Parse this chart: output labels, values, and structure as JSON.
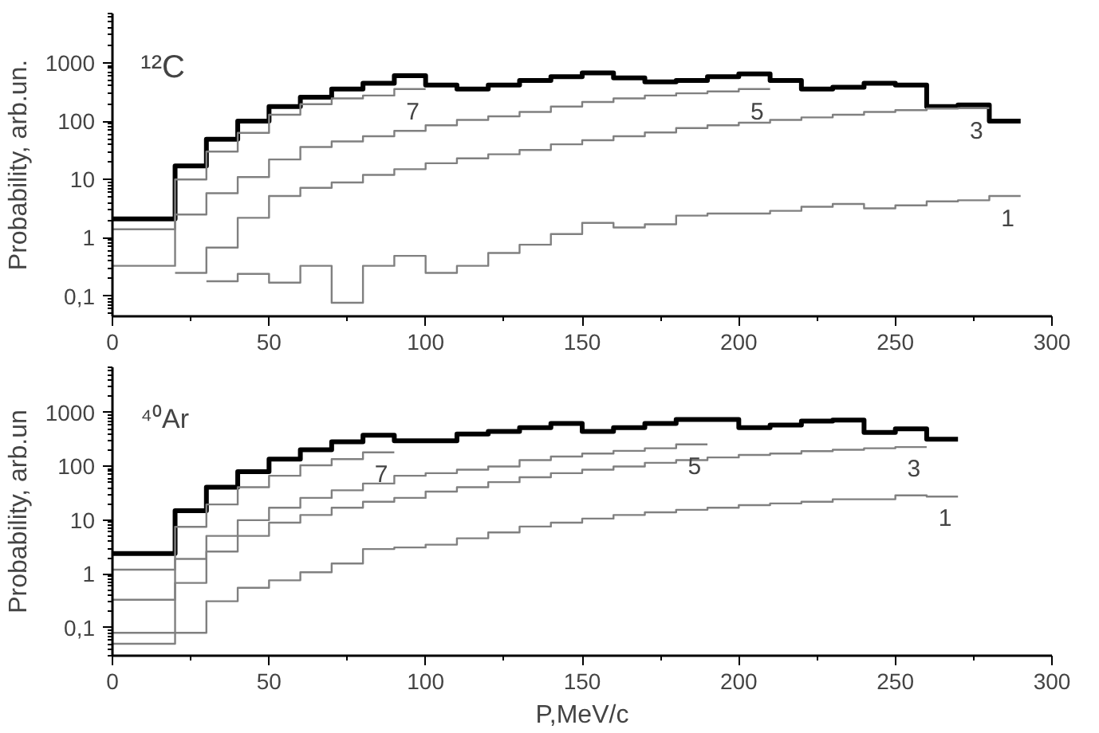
{
  "chart_data": [
    {
      "type": "step",
      "ylabel": "Probability, arb.un.",
      "log": true,
      "xlim": [
        0,
        300
      ],
      "xticks": [
        0,
        50,
        100,
        150,
        200,
        250,
        300
      ],
      "ylim": [
        0.045,
        7000
      ],
      "yticks": [
        {
          "value": 0.1,
          "label": "0,1"
        },
        1,
        10,
        100,
        1000
      ],
      "annotations": [
        "¹²C"
      ],
      "series": [
        {
          "color": "#000000",
          "x": [
            0,
            20,
            30,
            40,
            50,
            60,
            70,
            80,
            90,
            100,
            110,
            120,
            130,
            140,
            150,
            160,
            170,
            180,
            190,
            200,
            210,
            220,
            230,
            240,
            250,
            260,
            270,
            280,
            290
          ],
          "values": [
            2.1,
            17,
            49,
            100,
            178,
            257,
            355,
            447,
            603,
            417,
            355,
            417,
            500,
            580,
            670,
            550,
            470,
            500,
            580,
            645,
            500,
            355,
            380,
            447,
            417,
            178,
            190,
            100,
            100
          ]
        },
        {
          "name": "7",
          "color": "#808080",
          "x": [
            0,
            20,
            30,
            40,
            50,
            60,
            70,
            80,
            90,
            100
          ],
          "values": [
            1.4,
            10,
            30,
            63,
            129,
            195,
            245,
            275,
            355,
            355
          ]
        },
        {
          "name": "5",
          "color": "#808080",
          "x": [
            0,
            20,
            30,
            40,
            50,
            60,
            70,
            80,
            90,
            100,
            110,
            120,
            130,
            140,
            150,
            160,
            170,
            180,
            190,
            200,
            210
          ],
          "values": [
            0.33,
            2.5,
            5.8,
            11,
            22,
            36,
            45,
            55,
            68,
            85,
            105,
            121,
            144,
            178,
            213,
            245,
            275,
            300,
            324,
            355,
            355
          ]
        },
        {
          "name": "3",
          "color": "#808080",
          "x": [
            20,
            30,
            40,
            50,
            60,
            70,
            80,
            90,
            100,
            110,
            120,
            130,
            140,
            150,
            160,
            170,
            180,
            190,
            200,
            210,
            220,
            230,
            240,
            250,
            260,
            270,
            280
          ],
          "values": [
            0.25,
            0.68,
            2.2,
            5.2,
            7.2,
            8.9,
            12,
            15,
            19,
            23,
            27,
            32,
            40,
            47,
            55,
            64,
            76,
            85,
            94,
            105,
            116,
            129,
            144,
            154,
            164,
            167,
            167
          ]
        },
        {
          "name": "1",
          "color": "#808080",
          "x": [
            30,
            40,
            50,
            60,
            70,
            80,
            90,
            100,
            110,
            120,
            130,
            140,
            150,
            160,
            170,
            180,
            190,
            200,
            210,
            220,
            230,
            240,
            250,
            260,
            270,
            280,
            290
          ],
          "values": [
            0.18,
            0.24,
            0.17,
            0.33,
            0.077,
            0.33,
            0.49,
            0.25,
            0.33,
            0.55,
            0.76,
            1.16,
            1.8,
            1.5,
            1.7,
            2.4,
            2.6,
            2.6,
            2.9,
            3.4,
            3.8,
            3.2,
            3.6,
            4.2,
            4.4,
            5.2,
            5.2
          ]
        }
      ]
    },
    {
      "type": "step",
      "xlabel": "P,MeV/c",
      "ylabel": "Probability, arb.un",
      "log": true,
      "xlim": [
        0,
        300
      ],
      "xticks": [
        0,
        50,
        100,
        150,
        200,
        250,
        300
      ],
      "ylim": [
        0.03,
        7000
      ],
      "yticks": [
        {
          "value": 0.1,
          "label": "0,1"
        },
        1,
        10,
        100,
        1000
      ],
      "annotations": [
        "⁴⁰Ar"
      ],
      "series": [
        {
          "color": "#000000",
          "x": [
            0,
            20,
            30,
            40,
            50,
            60,
            70,
            80,
            90,
            100,
            110,
            120,
            130,
            140,
            150,
            160,
            170,
            180,
            190,
            200,
            210,
            220,
            230,
            240,
            250,
            260,
            270
          ],
          "values": [
            2.4,
            15,
            41,
            80,
            137,
            204,
            287,
            380,
            300,
            300,
            400,
            450,
            525,
            630,
            450,
            525,
            630,
            750,
            750,
            525,
            590,
            700,
            730,
            430,
            500,
            320,
            320
          ]
        },
        {
          "name": "7",
          "color": "#808080",
          "x": [
            0,
            20,
            30,
            40,
            50,
            60,
            70,
            80,
            90
          ],
          "values": [
            1.2,
            7.5,
            19.6,
            41,
            67,
            105,
            137,
            183,
            183
          ]
        },
        {
          "name": "5",
          "color": "#808080",
          "x": [
            0,
            20,
            30,
            40,
            50,
            60,
            70,
            80,
            90,
            100,
            110,
            120,
            130,
            140,
            150,
            160,
            170,
            180,
            190
          ],
          "values": [
            0.33,
            1.9,
            5.1,
            10,
            17,
            26,
            36,
            48,
            67,
            75,
            87,
            100,
            131,
            153,
            174,
            195,
            218,
            257,
            257
          ]
        },
        {
          "name": "3",
          "color": "#808080",
          "x": [
            0,
            20,
            30,
            40,
            50,
            60,
            70,
            80,
            90,
            100,
            110,
            120,
            130,
            140,
            150,
            160,
            170,
            180,
            190,
            200,
            210,
            220,
            230,
            240,
            250,
            260
          ],
          "values": [
            0.08,
            0.68,
            2.6,
            5.1,
            9,
            12.5,
            17,
            22,
            26,
            34,
            41,
            51,
            63,
            75,
            87,
            100,
            117,
            131,
            147,
            164,
            174,
            192,
            204,
            218,
            229,
            229
          ]
        },
        {
          "name": "1",
          "color": "#808080",
          "x": [
            0,
            20,
            30,
            40,
            50,
            60,
            70,
            80,
            90,
            100,
            110,
            120,
            130,
            140,
            150,
            160,
            170,
            180,
            190,
            200,
            210,
            220,
            230,
            240,
            250,
            260,
            270
          ],
          "values": [
            0.05,
            0.08,
            0.31,
            0.55,
            0.76,
            1.07,
            1.56,
            2.9,
            3.1,
            3.5,
            4.6,
            5.9,
            7.6,
            9,
            10.7,
            12.5,
            14,
            15.6,
            17,
            19,
            20.5,
            22,
            24.5,
            24.5,
            29,
            27.5,
            27.5
          ]
        }
      ]
    }
  ]
}
